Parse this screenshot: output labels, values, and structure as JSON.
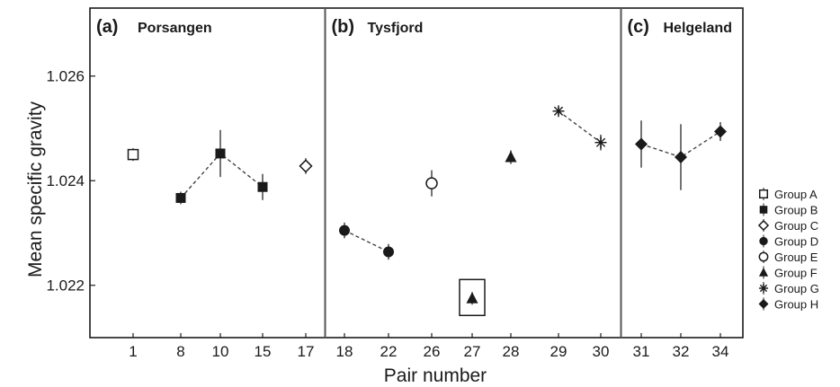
{
  "chart_data": {
    "type": "scatter",
    "xlabel": "Pair number",
    "ylabel": "Mean specific gravity",
    "ylim": [
      1.021,
      1.0273
    ],
    "yticks": [
      "1.022",
      "1.024",
      "1.026"
    ],
    "categories": [
      "1",
      "8",
      "10",
      "15",
      "17",
      "18",
      "22",
      "26",
      "27",
      "28",
      "29",
      "30",
      "31",
      "32",
      "34"
    ],
    "panels": [
      {
        "id": "a",
        "letter": "(a)",
        "name": "Porsangen",
        "categories": [
          "1",
          "8",
          "10",
          "15",
          "17"
        ]
      },
      {
        "id": "b",
        "letter": "(b)",
        "name": "Tysfjord",
        "categories": [
          "18",
          "22",
          "26",
          "27",
          "28",
          "29",
          "30"
        ]
      },
      {
        "id": "c",
        "letter": "(c)",
        "name": "Helgeland",
        "categories": [
          "31",
          "32",
          "34"
        ]
      }
    ],
    "series": [
      {
        "name": "Group A",
        "marker": "open-square",
        "points": [
          {
            "x": "1",
            "y": 1.0245,
            "err": 0.00012
          }
        ]
      },
      {
        "name": "Group B",
        "marker": "filled-square",
        "connected": true,
        "points": [
          {
            "x": "8",
            "y": 1.02367,
            "err": 0.00012
          },
          {
            "x": "10",
            "y": 1.02452,
            "err": 0.00045
          },
          {
            "x": "15",
            "y": 1.02388,
            "err": 0.00025
          }
        ]
      },
      {
        "name": "Group C",
        "marker": "open-diamond",
        "points": [
          {
            "x": "17",
            "y": 1.02428,
            "err": 0.00015
          }
        ]
      },
      {
        "name": "Group D",
        "marker": "filled-circle",
        "connected": true,
        "points": [
          {
            "x": "18",
            "y": 1.02305,
            "err": 0.00015
          },
          {
            "x": "22",
            "y": 1.02264,
            "err": 0.00015
          }
        ]
      },
      {
        "name": "Group E",
        "marker": "open-circle",
        "points": [
          {
            "x": "26",
            "y": 1.02395,
            "err": 0.00025
          }
        ]
      },
      {
        "name": "Group F",
        "marker": "filled-triangle",
        "points": [
          {
            "x": "27",
            "y": 1.02175,
            "err": 0.00012,
            "boxed": true
          },
          {
            "x": "28",
            "y": 1.02445,
            "err": 0.00013
          }
        ]
      },
      {
        "name": "Group G",
        "marker": "asterisk",
        "connected": true,
        "points": [
          {
            "x": "29",
            "y": 1.02533,
            "err": 8e-05
          },
          {
            "x": "30",
            "y": 1.02473,
            "err": 0.00015
          }
        ]
      },
      {
        "name": "Group H",
        "marker": "filled-diamond",
        "connected": true,
        "points": [
          {
            "x": "31",
            "y": 1.0247,
            "err": 0.00045
          },
          {
            "x": "32",
            "y": 1.02445,
            "err": 0.00063
          },
          {
            "x": "34",
            "y": 1.02494,
            "err": 0.00018
          }
        ]
      }
    ],
    "legend": [
      "Group A",
      "Group B",
      "Group C",
      "Group D",
      "Group E",
      "Group F",
      "Group G",
      "Group H"
    ],
    "legend_position": "right",
    "grid": false
  }
}
